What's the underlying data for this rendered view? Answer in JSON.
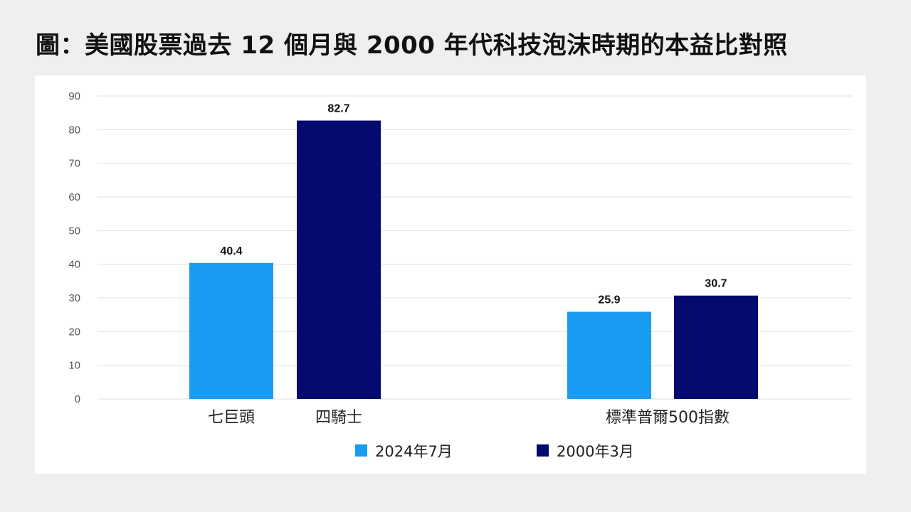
{
  "title": "圖：美國股票過去 12 個月與 2000 年代科技泡沫時期的本益比對照",
  "chart_data": {
    "type": "bar",
    "title": "圖：美國股票過去 12 個月與 2000 年代科技泡沫時期的本益比對照",
    "xlabel": "",
    "ylabel": "",
    "ylim": [
      0,
      90
    ],
    "yticks": [
      0,
      10,
      20,
      30,
      40,
      50,
      60,
      70,
      80,
      90
    ],
    "grid": true,
    "legend_position": "bottom",
    "groups": [
      {
        "label": "七巨頭",
        "series": "2024年7月",
        "value": 40.4
      },
      {
        "label": "四騎士",
        "series": "2000年3月",
        "value": 82.7
      },
      {
        "label": "標準普爾500指數",
        "series": "2024年7月",
        "value": 25.9
      },
      {
        "label": "標準普爾500指數",
        "series": "2000年3月",
        "value": 30.7
      }
    ],
    "series": [
      {
        "name": "2024年7月",
        "color": "#1a9bf2"
      },
      {
        "name": "2000年3月",
        "color": "#050a70"
      }
    ]
  }
}
